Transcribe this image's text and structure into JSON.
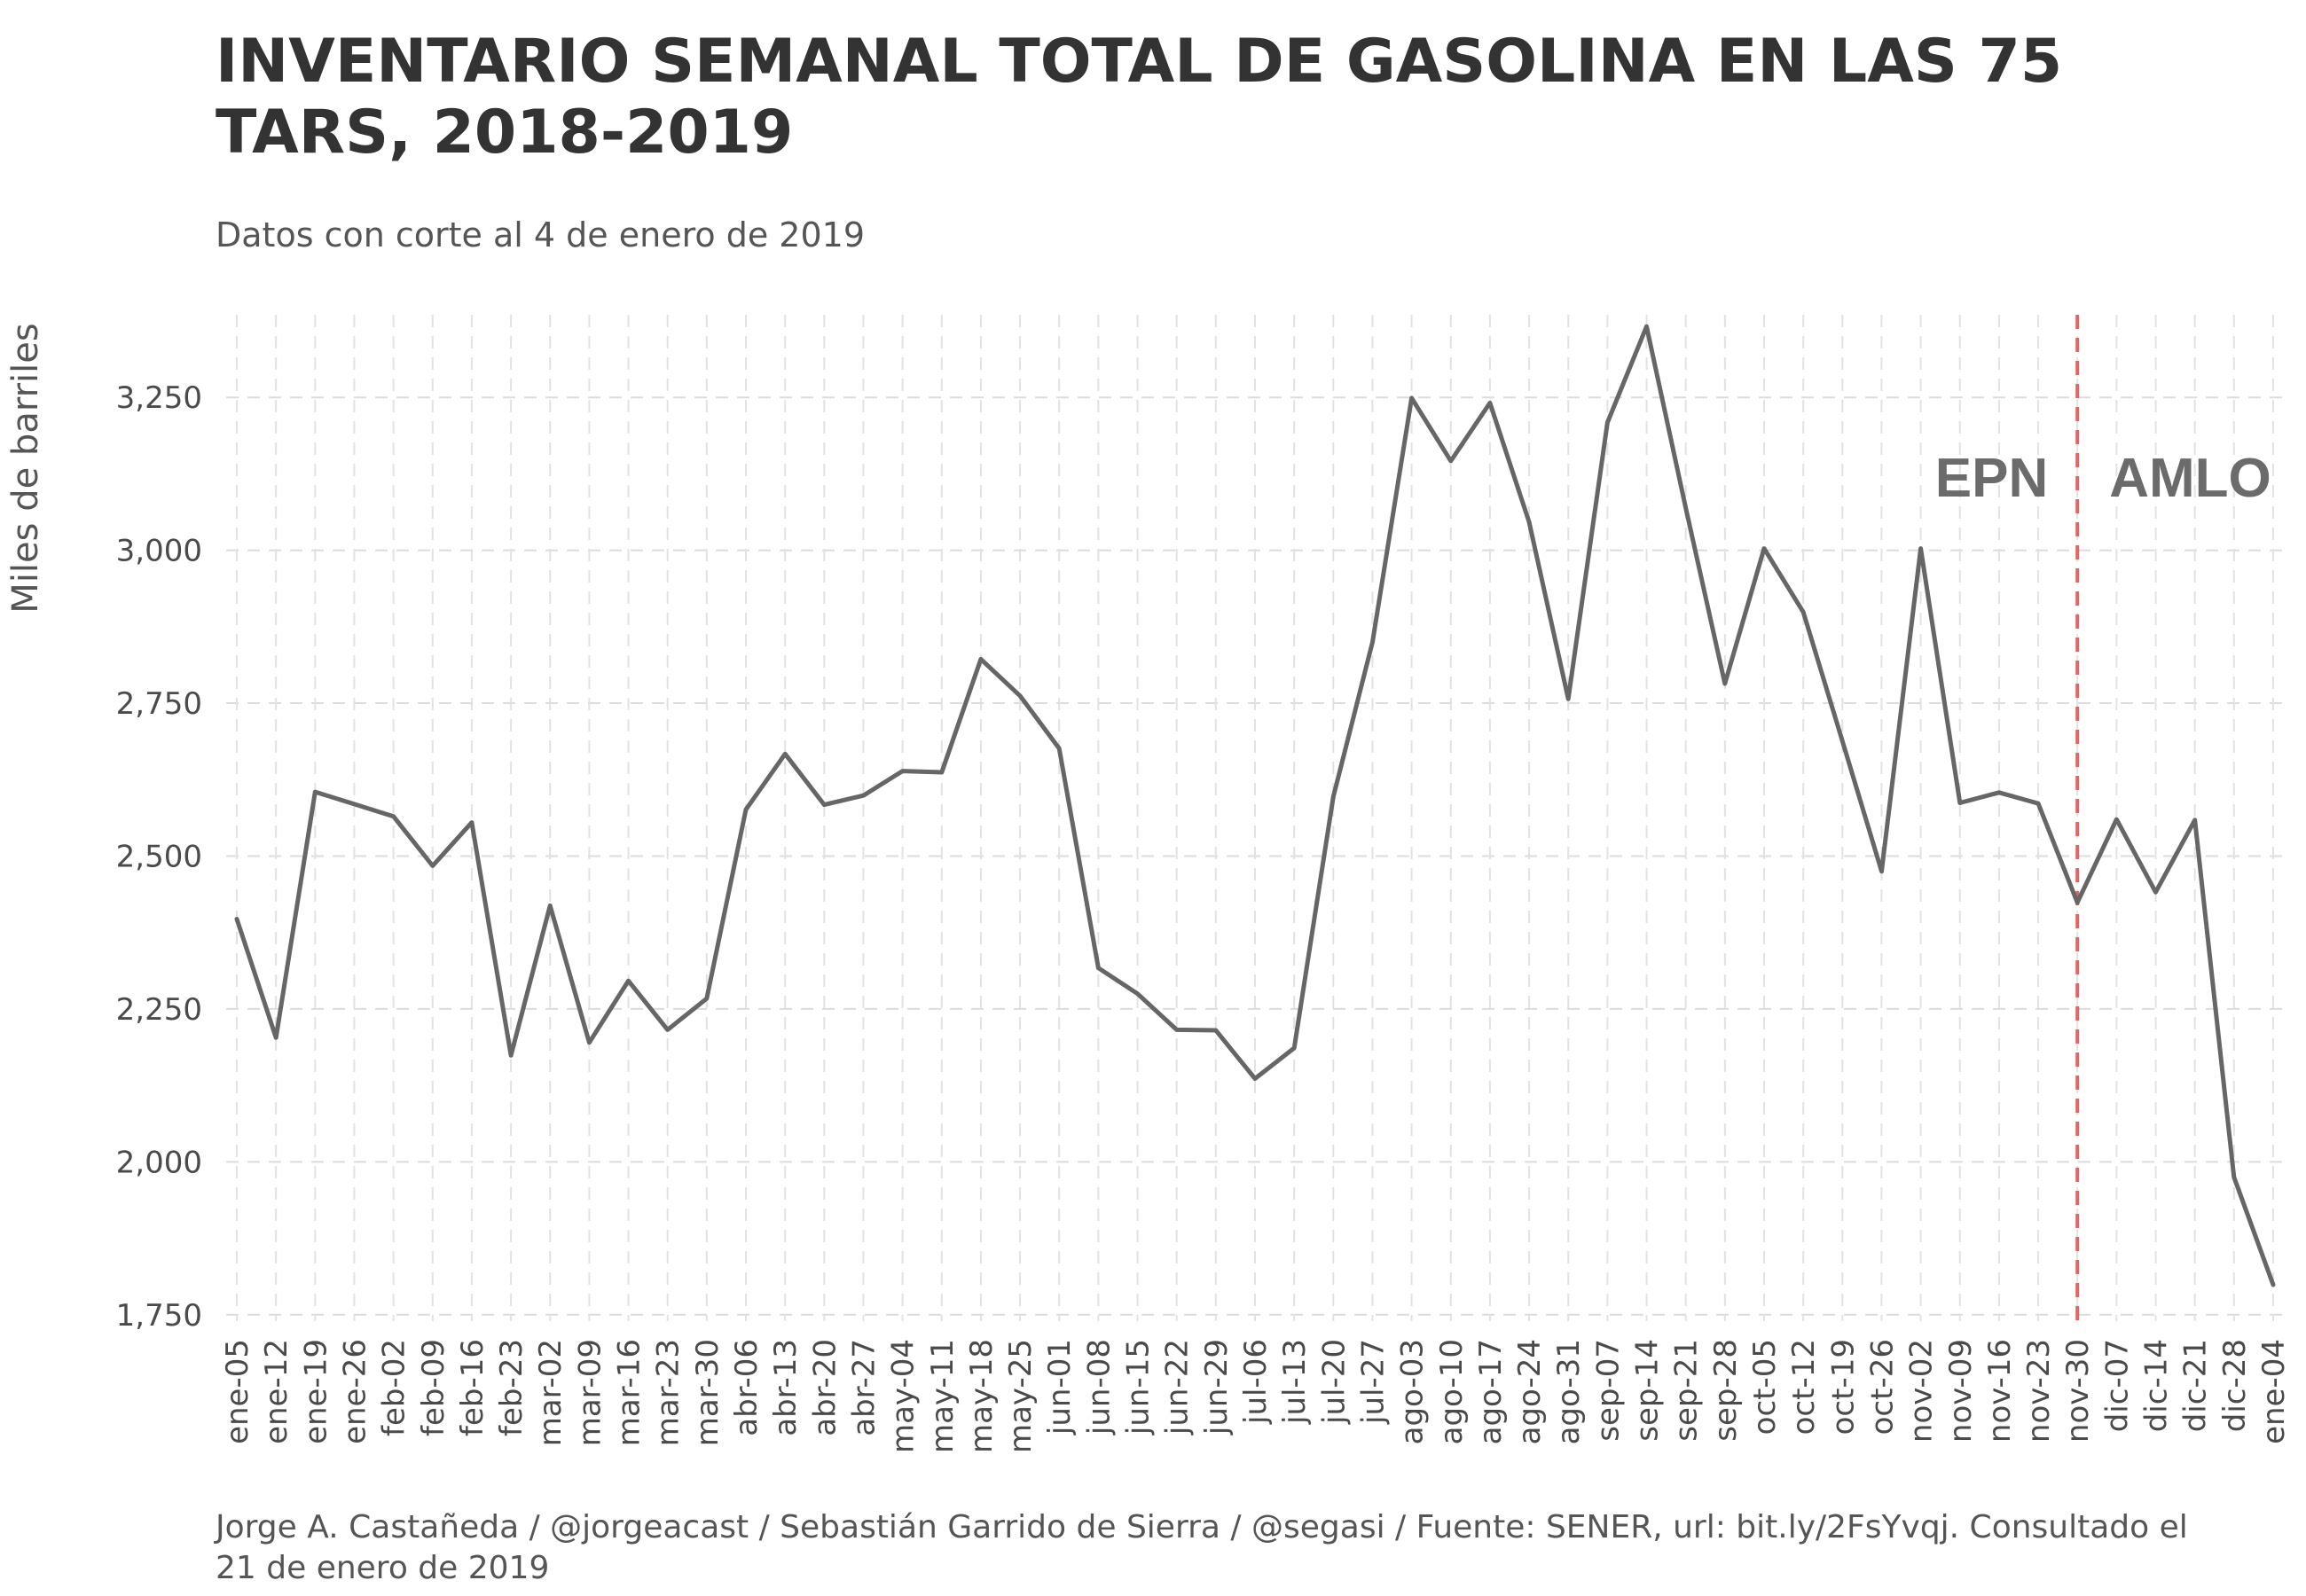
{
  "title": "INVENTARIO SEMANAL TOTAL DE GASOLINA EN LAS 75 TARS, 2018-2019",
  "subtitle": "Datos con corte al 4 de enero de 2019",
  "caption": "Jorge A. Castañeda / @jorgeacast / Sebastián Garrido de Sierra / @segasi / Fuente: SENER, url: bit.ly/2FsYvqj. Consultado el 21 de enero de 2019",
  "chart_data": {
    "type": "line",
    "title": "INVENTARIO SEMANAL TOTAL DE GASOLINA EN LAS 75 TARS, 2018-2019",
    "xlabel": "",
    "ylabel": "Miles de barriles",
    "ylim": [
      1725,
      3375
    ],
    "y_ticks": [
      1750,
      2000,
      2250,
      2500,
      2750,
      3000,
      3250
    ],
    "y_tick_labels": [
      "1,750",
      "2,000",
      "2,250",
      "2,500",
      "2,750",
      "3,000",
      "3,250"
    ],
    "grid": true,
    "line_color": "#666666",
    "categories": [
      "ene-05",
      "ene-12",
      "ene-19",
      "ene-26",
      "feb-02",
      "feb-09",
      "feb-16",
      "feb-23",
      "mar-02",
      "mar-09",
      "mar-16",
      "mar-23",
      "mar-30",
      "abr-06",
      "abr-13",
      "abr-20",
      "abr-27",
      "may-04",
      "may-11",
      "may-18",
      "may-25",
      "jun-01",
      "jun-08",
      "jun-15",
      "jun-22",
      "jun-29",
      "jul-06",
      "jul-13",
      "jul-20",
      "jul-27",
      "ago-03",
      "ago-10",
      "ago-17",
      "ago-24",
      "ago-31",
      "sep-07",
      "sep-14",
      "sep-21",
      "sep-28",
      "oct-05",
      "oct-12",
      "oct-19",
      "oct-26",
      "nov-02",
      "nov-09",
      "nov-16",
      "nov-23",
      "nov-30",
      "dic-07",
      "dic-14",
      "dic-21",
      "dic-28",
      "ene-04"
    ],
    "series": [
      {
        "values": [
          2397,
          2203,
          2605,
          2585,
          2565,
          2484,
          2555,
          2174,
          2419,
          2195,
          2296,
          2216,
          2267,
          2576,
          2667,
          2584,
          2599,
          2639,
          2637,
          2822,
          2762,
          2676,
          2317,
          2275,
          2216,
          2215,
          2136,
          2186,
          2597,
          2850,
          3249,
          3146,
          3241,
          3046,
          2757,
          3209,
          3366,
          3069,
          2782,
          3003,
          2899,
          2688,
          2475,
          3003,
          2587,
          2604,
          2586,
          2424,
          2560,
          2441,
          2559,
          1975,
          1799
        ]
      }
    ],
    "annotations": {
      "vline_category": "nov-30",
      "vline_color": "#e06666",
      "left_label": "EPN",
      "right_label": "AMLO",
      "label_y": 3120
    }
  }
}
